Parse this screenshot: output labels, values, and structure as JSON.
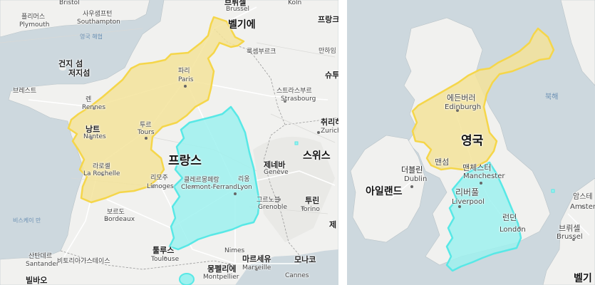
{
  "colors": {
    "land": "#f1f1ef",
    "sea": "#cdd8de",
    "north_korea_fill": "#f3e39a",
    "north_korea_stroke": "#f5d64a",
    "south_korea_fill": "#9df1ef",
    "south_korea_stroke": "#58e8e6",
    "road": "#ffffff",
    "sea_label": "#6a8fb3"
  },
  "left_map": {
    "labels": {
      "bristol": "Bristol",
      "brussels_ko": "브뤼셀",
      "brussels": "Brussel",
      "koln": "Köln",
      "southampton": "Southampton",
      "southampton_ko": "사우샘프턴",
      "plymouth_ko": "플리머스",
      "plymouth": "Plymouth",
      "belgium": "벨기에",
      "frankfurt": "프랑크퓨",
      "english_channel": "영국 해협",
      "luxembourg": "룩셈부르크",
      "mannheim": "만하임",
      "guernsey": "건지 섬",
      "jersey": "저지섬",
      "stuttgart": "슈투",
      "paris_ko": "파리",
      "paris": "Paris",
      "brest": "브레스트",
      "rennes_ko": "렌",
      "rennes": "Rennes",
      "strasbourg_ko": "스트라스부르",
      "strasbourg": "Strasbourg",
      "nantes_ko": "낭트",
      "nantes": "Nantes",
      "tours_ko": "투르",
      "tours": "Tours",
      "zurich_ko": "취리하",
      "zurich": "Zurich",
      "larochelle_ko": "라로셸",
      "larochelle": "La Rochelle",
      "france": "프랑스",
      "switzerland": "스위스",
      "clermont_ko": "클레르몽페랑",
      "clermont": "Clermont-Ferrand",
      "lyon_ko": "리옹",
      "lyon": "Lyon",
      "geneva_ko": "제네바",
      "geneva": "Genève",
      "limoges_ko": "리모주",
      "limoges": "Limoges",
      "grenoble_ko": "그르노블",
      "grenoble": "Grenoble",
      "turin_ko": "투린",
      "turin": "Torino",
      "biscay": "비스케이 만",
      "bordeaux_ko": "보르도",
      "bordeaux": "Bordeaux",
      "toulouse_ko": "툴루스",
      "toulouse": "Toulouse",
      "nimes": "Nimes",
      "montpellier_ko": "몽펠리에",
      "montpellier": "Montpellier",
      "marseille_ko": "마르세유",
      "marseille": "Marseille",
      "monaco": "모나코",
      "cannes": "Cannes",
      "santander_ko": "산탄데르",
      "santander": "Santander",
      "vitoria_ko": "비토리아가스테이스",
      "bilbao": "빌바오",
      "genova": "제"
    }
  },
  "right_map": {
    "labels": {
      "sea_north": "북해",
      "edinburgh_ko": "에든버러",
      "edinburgh": "Edinburgh",
      "uk": "영국",
      "dublin_ko": "더블린",
      "dublin": "Dublin",
      "ireland": "아일랜드",
      "isle_of_man": "맨섬",
      "manchester_ko": "맨체스터",
      "manchester": "Manchester",
      "liverpool_ko": "리버풀",
      "liverpool": "Liverpool",
      "london_ko": "런던",
      "london": "London",
      "amsterdam_ko": "암스테",
      "amsterdam": "Amsterda",
      "brussels_ko": "브뤼셀",
      "brussels": "Brussel",
      "belgium": "벨기"
    }
  }
}
